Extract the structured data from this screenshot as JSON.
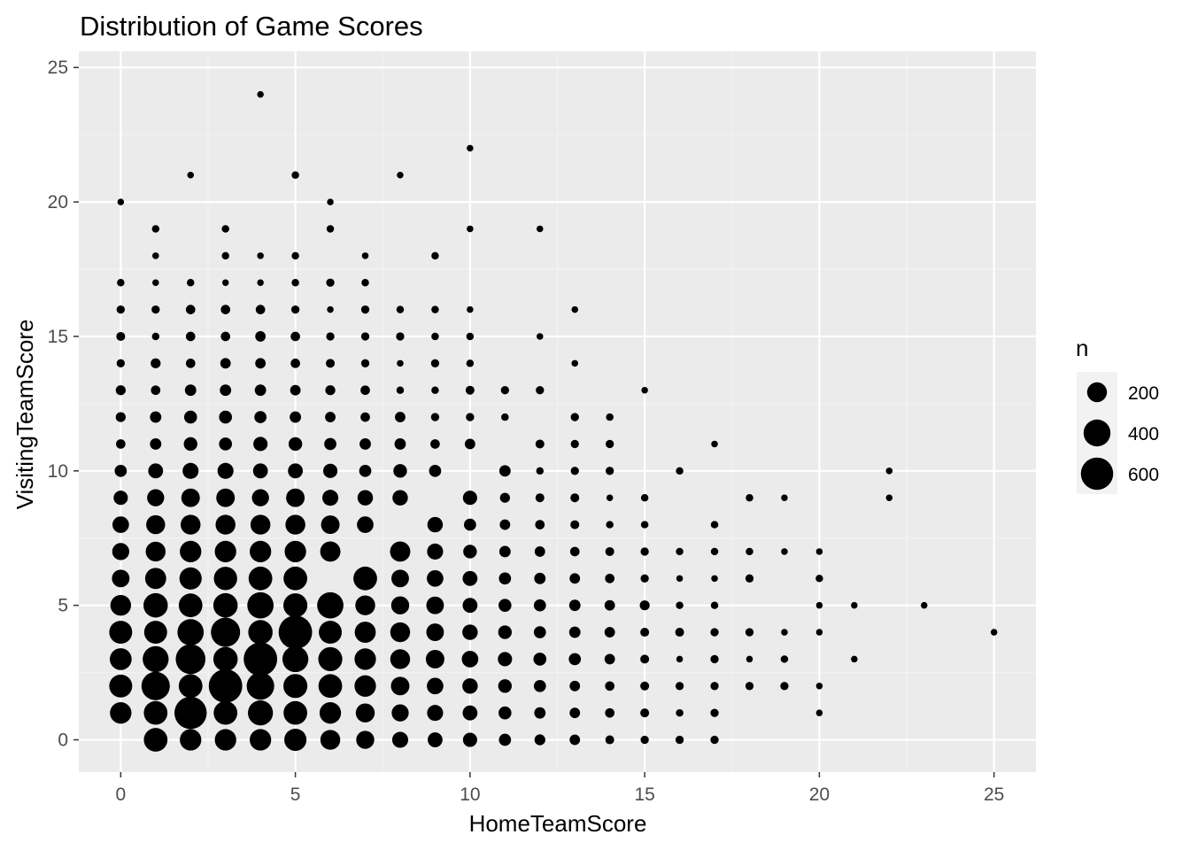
{
  "chart_data": {
    "type": "scatter",
    "title": "Distribution of Game Scores",
    "xlabel": "HomeTeamScore",
    "ylabel": "VisitingTeamScore",
    "xlim": [
      -1.2,
      26.2
    ],
    "ylim": [
      -1.2,
      25.6
    ],
    "x_ticks": [
      "0",
      "5",
      "10",
      "15",
      "20",
      "25"
    ],
    "y_ticks": [
      "0",
      "5",
      "10",
      "15",
      "20",
      "25"
    ],
    "grid": true,
    "size_variable": "n",
    "legend": {
      "title": "n",
      "placement": "right",
      "entries": [
        {
          "label": "200",
          "n": 200
        },
        {
          "label": "400",
          "n": 400
        },
        {
          "label": "600",
          "n": 600
        }
      ]
    },
    "colors": {
      "panel_background": "#ebebeb",
      "grid_major": "#ffffff",
      "grid_minor": "#f2f2f2",
      "point": "#000000",
      "tick_text": "#4d4d4d",
      "legend_key_background": "#f2f2f2"
    },
    "points": [
      [
        0,
        20,
        10
      ],
      [
        0,
        17,
        15
      ],
      [
        0,
        16,
        20
      ],
      [
        0,
        15,
        25
      ],
      [
        0,
        14,
        20
      ],
      [
        0,
        13,
        35
      ],
      [
        0,
        12,
        35
      ],
      [
        0,
        11,
        30
      ],
      [
        0,
        10,
        60
      ],
      [
        0,
        9,
        90
      ],
      [
        0,
        8,
        130
      ],
      [
        0,
        7,
        140
      ],
      [
        0,
        6,
        150
      ],
      [
        0,
        5,
        220
      ],
      [
        0,
        4,
        280
      ],
      [
        0,
        3,
        250
      ],
      [
        0,
        2,
        280
      ],
      [
        0,
        1,
        240
      ],
      [
        1,
        19,
        15
      ],
      [
        1,
        18,
        10
      ],
      [
        1,
        17,
        10
      ],
      [
        1,
        16,
        20
      ],
      [
        1,
        15,
        15
      ],
      [
        1,
        14,
        35
      ],
      [
        1,
        13,
        30
      ],
      [
        1,
        12,
        50
      ],
      [
        1,
        11,
        50
      ],
      [
        1,
        10,
        100
      ],
      [
        1,
        9,
        140
      ],
      [
        1,
        8,
        180
      ],
      [
        1,
        7,
        200
      ],
      [
        1,
        6,
        230
      ],
      [
        1,
        5,
        320
      ],
      [
        1,
        4,
        280
      ],
      [
        1,
        3,
        370
      ],
      [
        1,
        2,
        450
      ],
      [
        1,
        1,
        300
      ],
      [
        1,
        0,
        300
      ],
      [
        2,
        21,
        10
      ],
      [
        2,
        17,
        15
      ],
      [
        2,
        16,
        30
      ],
      [
        2,
        15,
        30
      ],
      [
        2,
        14,
        30
      ],
      [
        2,
        13,
        50
      ],
      [
        2,
        12,
        70
      ],
      [
        2,
        11,
        80
      ],
      [
        2,
        10,
        120
      ],
      [
        2,
        9,
        170
      ],
      [
        2,
        8,
        200
      ],
      [
        2,
        7,
        240
      ],
      [
        2,
        6,
        260
      ],
      [
        2,
        5,
        300
      ],
      [
        2,
        4,
        380
      ],
      [
        2,
        3,
        500
      ],
      [
        2,
        2,
        300
      ],
      [
        2,
        1,
        600
      ],
      [
        2,
        0,
        240
      ],
      [
        3,
        19,
        15
      ],
      [
        3,
        18,
        15
      ],
      [
        3,
        17,
        10
      ],
      [
        3,
        16,
        30
      ],
      [
        3,
        15,
        30
      ],
      [
        3,
        14,
        40
      ],
      [
        3,
        13,
        50
      ],
      [
        3,
        12,
        70
      ],
      [
        3,
        11,
        70
      ],
      [
        3,
        10,
        120
      ],
      [
        3,
        9,
        170
      ],
      [
        3,
        8,
        200
      ],
      [
        3,
        7,
        240
      ],
      [
        3,
        6,
        290
      ],
      [
        3,
        5,
        320
      ],
      [
        3,
        4,
        480
      ],
      [
        3,
        3,
        320
      ],
      [
        3,
        2,
        650
      ],
      [
        3,
        1,
        300
      ],
      [
        3,
        0,
        240
      ],
      [
        4,
        24,
        10
      ],
      [
        4,
        18,
        10
      ],
      [
        4,
        17,
        10
      ],
      [
        4,
        16,
        30
      ],
      [
        4,
        15,
        40
      ],
      [
        4,
        14,
        40
      ],
      [
        4,
        13,
        50
      ],
      [
        4,
        12,
        60
      ],
      [
        4,
        11,
        90
      ],
      [
        4,
        10,
        100
      ],
      [
        4,
        9,
        140
      ],
      [
        4,
        8,
        200
      ],
      [
        4,
        7,
        240
      ],
      [
        4,
        6,
        300
      ],
      [
        4,
        5,
        380
      ],
      [
        4,
        4,
        320
      ],
      [
        4,
        3,
        650
      ],
      [
        4,
        2,
        420
      ],
      [
        4,
        1,
        340
      ],
      [
        4,
        0,
        240
      ],
      [
        5,
        21,
        15
      ],
      [
        5,
        18,
        15
      ],
      [
        5,
        17,
        15
      ],
      [
        5,
        16,
        20
      ],
      [
        5,
        15,
        30
      ],
      [
        5,
        14,
        30
      ],
      [
        5,
        13,
        40
      ],
      [
        5,
        12,
        50
      ],
      [
        5,
        11,
        80
      ],
      [
        5,
        10,
        100
      ],
      [
        5,
        9,
        170
      ],
      [
        5,
        8,
        200
      ],
      [
        5,
        7,
        240
      ],
      [
        5,
        6,
        300
      ],
      [
        5,
        5,
        310
      ],
      [
        5,
        4,
        650
      ],
      [
        5,
        3,
        370
      ],
      [
        5,
        2,
        310
      ],
      [
        5,
        1,
        300
      ],
      [
        5,
        0,
        260
      ],
      [
        6,
        20,
        10
      ],
      [
        6,
        19,
        15
      ],
      [
        6,
        17,
        20
      ],
      [
        6,
        16,
        10
      ],
      [
        6,
        15,
        20
      ],
      [
        6,
        14,
        25
      ],
      [
        6,
        13,
        35
      ],
      [
        6,
        12,
        40
      ],
      [
        6,
        11,
        60
      ],
      [
        6,
        10,
        90
      ],
      [
        6,
        9,
        120
      ],
      [
        6,
        8,
        170
      ],
      [
        6,
        7,
        210
      ],
      [
        6,
        5,
        380
      ],
      [
        6,
        4,
        280
      ],
      [
        6,
        3,
        310
      ],
      [
        6,
        2,
        300
      ],
      [
        6,
        1,
        240
      ],
      [
        6,
        0,
        200
      ],
      [
        7,
        18,
        10
      ],
      [
        7,
        17,
        15
      ],
      [
        7,
        16,
        20
      ],
      [
        7,
        15,
        20
      ],
      [
        7,
        14,
        20
      ],
      [
        7,
        13,
        30
      ],
      [
        7,
        12,
        30
      ],
      [
        7,
        11,
        50
      ],
      [
        7,
        10,
        60
      ],
      [
        7,
        9,
        110
      ],
      [
        7,
        8,
        130
      ],
      [
        7,
        6,
        300
      ],
      [
        7,
        5,
        200
      ],
      [
        7,
        4,
        230
      ],
      [
        7,
        3,
        240
      ],
      [
        7,
        2,
        240
      ],
      [
        7,
        1,
        180
      ],
      [
        7,
        0,
        160
      ],
      [
        8,
        21,
        10
      ],
      [
        8,
        16,
        15
      ],
      [
        8,
        15,
        20
      ],
      [
        8,
        14,
        10
      ],
      [
        8,
        13,
        15
      ],
      [
        8,
        12,
        40
      ],
      [
        8,
        11,
        50
      ],
      [
        8,
        10,
        80
      ],
      [
        8,
        9,
        110
      ],
      [
        8,
        7,
        210
      ],
      [
        8,
        6,
        150
      ],
      [
        8,
        5,
        160
      ],
      [
        8,
        4,
        200
      ],
      [
        8,
        3,
        200
      ],
      [
        8,
        2,
        170
      ],
      [
        8,
        1,
        140
      ],
      [
        8,
        0,
        120
      ],
      [
        9,
        18,
        15
      ],
      [
        9,
        16,
        15
      ],
      [
        9,
        15,
        15
      ],
      [
        9,
        14,
        20
      ],
      [
        9,
        13,
        15
      ],
      [
        9,
        12,
        20
      ],
      [
        9,
        11,
        30
      ],
      [
        9,
        10,
        60
      ],
      [
        9,
        8,
        110
      ],
      [
        9,
        7,
        120
      ],
      [
        9,
        6,
        130
      ],
      [
        9,
        5,
        150
      ],
      [
        9,
        4,
        150
      ],
      [
        9,
        3,
        170
      ],
      [
        9,
        2,
        130
      ],
      [
        9,
        1,
        120
      ],
      [
        9,
        0,
        100
      ],
      [
        10,
        22,
        10
      ],
      [
        10,
        19,
        10
      ],
      [
        10,
        16,
        10
      ],
      [
        10,
        15,
        15
      ],
      [
        10,
        14,
        15
      ],
      [
        10,
        13,
        25
      ],
      [
        10,
        12,
        20
      ],
      [
        10,
        11,
        40
      ],
      [
        10,
        9,
        90
      ],
      [
        10,
        8,
        60
      ],
      [
        10,
        7,
        80
      ],
      [
        10,
        6,
        100
      ],
      [
        10,
        5,
        100
      ],
      [
        10,
        4,
        110
      ],
      [
        10,
        3,
        130
      ],
      [
        10,
        2,
        110
      ],
      [
        10,
        1,
        100
      ],
      [
        10,
        0,
        90
      ],
      [
        11,
        13,
        20
      ],
      [
        11,
        12,
        15
      ],
      [
        11,
        10,
        50
      ],
      [
        11,
        9,
        35
      ],
      [
        11,
        8,
        40
      ],
      [
        11,
        7,
        50
      ],
      [
        11,
        6,
        60
      ],
      [
        11,
        5,
        70
      ],
      [
        11,
        4,
        80
      ],
      [
        11,
        3,
        90
      ],
      [
        11,
        2,
        80
      ],
      [
        11,
        1,
        70
      ],
      [
        11,
        0,
        60
      ],
      [
        12,
        19,
        10
      ],
      [
        12,
        15,
        10
      ],
      [
        12,
        13,
        20
      ],
      [
        12,
        11,
        25
      ],
      [
        12,
        10,
        15
      ],
      [
        12,
        9,
        25
      ],
      [
        12,
        8,
        30
      ],
      [
        12,
        7,
        40
      ],
      [
        12,
        6,
        50
      ],
      [
        12,
        5,
        60
      ],
      [
        12,
        4,
        60
      ],
      [
        12,
        3,
        70
      ],
      [
        12,
        2,
        60
      ],
      [
        12,
        1,
        50
      ],
      [
        12,
        0,
        45
      ],
      [
        13,
        16,
        10
      ],
      [
        13,
        14,
        10
      ],
      [
        13,
        12,
        20
      ],
      [
        13,
        11,
        20
      ],
      [
        13,
        10,
        20
      ],
      [
        13,
        9,
        25
      ],
      [
        13,
        8,
        25
      ],
      [
        13,
        7,
        30
      ],
      [
        13,
        6,
        40
      ],
      [
        13,
        5,
        50
      ],
      [
        13,
        4,
        50
      ],
      [
        13,
        3,
        60
      ],
      [
        13,
        2,
        40
      ],
      [
        13,
        1,
        40
      ],
      [
        13,
        0,
        40
      ],
      [
        14,
        12,
        15
      ],
      [
        14,
        11,
        20
      ],
      [
        14,
        10,
        20
      ],
      [
        14,
        9,
        10
      ],
      [
        14,
        8,
        15
      ],
      [
        14,
        7,
        25
      ],
      [
        14,
        6,
        30
      ],
      [
        14,
        5,
        40
      ],
      [
        14,
        4,
        40
      ],
      [
        14,
        3,
        40
      ],
      [
        14,
        2,
        30
      ],
      [
        14,
        1,
        30
      ],
      [
        14,
        0,
        25
      ],
      [
        15,
        13,
        10
      ],
      [
        15,
        9,
        15
      ],
      [
        15,
        8,
        15
      ],
      [
        15,
        7,
        20
      ],
      [
        15,
        6,
        20
      ],
      [
        15,
        5,
        35
      ],
      [
        15,
        4,
        25
      ],
      [
        15,
        3,
        25
      ],
      [
        15,
        2,
        25
      ],
      [
        15,
        1,
        25
      ],
      [
        15,
        0,
        20
      ],
      [
        16,
        10,
        15
      ],
      [
        16,
        7,
        15
      ],
      [
        16,
        6,
        10
      ],
      [
        16,
        5,
        15
      ],
      [
        16,
        4,
        25
      ],
      [
        16,
        3,
        10
      ],
      [
        16,
        2,
        20
      ],
      [
        16,
        1,
        15
      ],
      [
        16,
        0,
        20
      ],
      [
        17,
        11,
        10
      ],
      [
        17,
        8,
        15
      ],
      [
        17,
        7,
        15
      ],
      [
        17,
        6,
        10
      ],
      [
        17,
        5,
        15
      ],
      [
        17,
        4,
        20
      ],
      [
        17,
        3,
        20
      ],
      [
        17,
        2,
        20
      ],
      [
        17,
        1,
        20
      ],
      [
        17,
        0,
        20
      ],
      [
        18,
        9,
        15
      ],
      [
        18,
        7,
        15
      ],
      [
        18,
        6,
        20
      ],
      [
        18,
        4,
        20
      ],
      [
        18,
        3,
        10
      ],
      [
        18,
        2,
        20
      ],
      [
        19,
        9,
        10
      ],
      [
        19,
        7,
        10
      ],
      [
        19,
        4,
        10
      ],
      [
        19,
        3,
        15
      ],
      [
        19,
        2,
        20
      ],
      [
        20,
        7,
        10
      ],
      [
        20,
        6,
        15
      ],
      [
        20,
        5,
        10
      ],
      [
        20,
        4,
        10
      ],
      [
        20,
        2,
        10
      ],
      [
        20,
        1,
        10
      ],
      [
        21,
        5,
        10
      ],
      [
        21,
        3,
        10
      ],
      [
        22,
        10,
        10
      ],
      [
        22,
        9,
        10
      ],
      [
        23,
        5,
        10
      ],
      [
        25,
        4,
        10
      ]
    ]
  }
}
